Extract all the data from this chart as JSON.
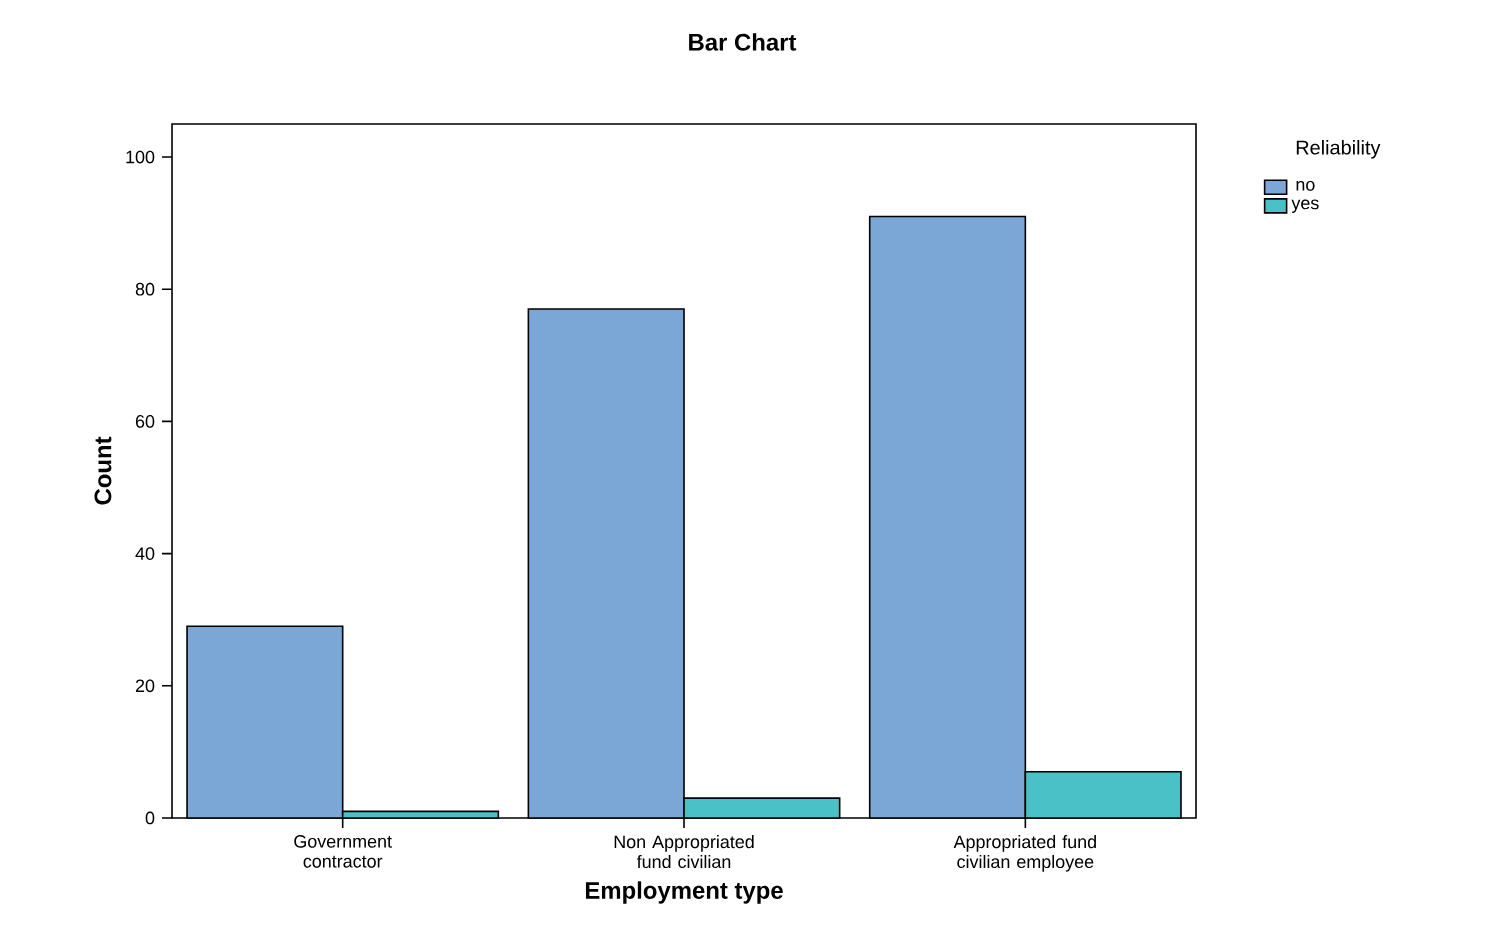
{
  "chart_data": {
    "type": "bar",
    "title": "Bar Chart",
    "xlabel": "Employment type",
    "ylabel": "Count",
    "legend_title": "Reliability",
    "categories": [
      "Government contractor",
      "Non Appropriated fund civilian",
      "Appropriated fund civilian employee"
    ],
    "series": [
      {
        "name": "no",
        "color": "#7ba7d6",
        "values": [
          29,
          77,
          91
        ]
      },
      {
        "name": "yes",
        "color": "#49c1c6",
        "values": [
          1,
          3,
          7
        ]
      }
    ],
    "ylim": [
      0,
      105
    ],
    "yticks": [
      0,
      20,
      40,
      60,
      80,
      100
    ],
    "grid": false,
    "legend": "top right"
  }
}
